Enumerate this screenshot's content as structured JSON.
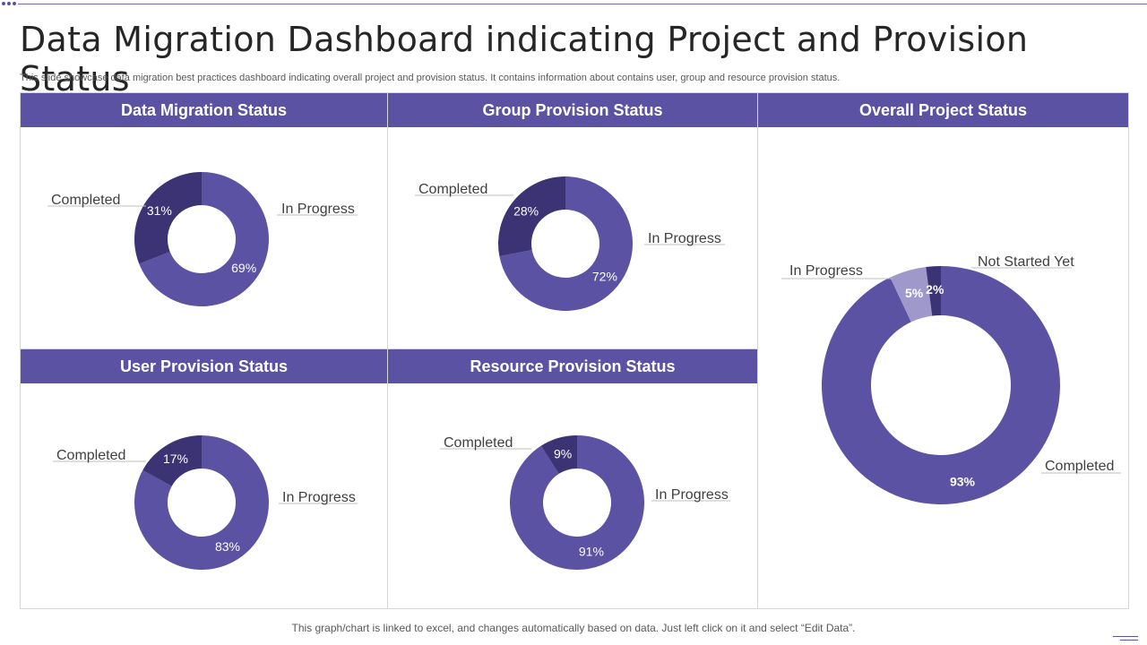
{
  "page": {
    "title": "Data Migration Dashboard indicating Project and Provision Status",
    "subtitle": "This slide showcase data migration best practices dashboard indicating overall project and provision status. It contains information about contains user, group and resource provision status.",
    "footer": "This graph/chart is linked to excel, and changes automatically based on data. Just left click on it and select “Edit Data”."
  },
  "colors": {
    "header": "#5b52a3",
    "in_progress": "#5b52a3",
    "completed": "#3b3373",
    "not_started": "#3b3373",
    "overall_in_progress": "#9e98cb"
  },
  "chart_data": [
    {
      "type": "pie",
      "title": "Data Migration Status",
      "slices": [
        {
          "label": "In Progress",
          "value": 69,
          "display": "69%"
        },
        {
          "label": "Completed",
          "value": 31,
          "display": "31%"
        }
      ]
    },
    {
      "type": "pie",
      "title": "Group Provision Status",
      "slices": [
        {
          "label": "In Progress",
          "value": 72,
          "display": "72%"
        },
        {
          "label": "Completed",
          "value": 28,
          "display": "28%"
        }
      ]
    },
    {
      "type": "pie",
      "title": "Overall Project Status",
      "slices": [
        {
          "label": "Completed",
          "value": 93,
          "display": "93%"
        },
        {
          "label": "In Progress",
          "value": 5,
          "display": "5%"
        },
        {
          "label": "Not Started Yet",
          "value": 2,
          "display": "2%"
        }
      ]
    },
    {
      "type": "pie",
      "title": "User Provision Status",
      "slices": [
        {
          "label": "In Progress",
          "value": 83,
          "display": "83%"
        },
        {
          "label": "Completed",
          "value": 17,
          "display": "17%"
        }
      ]
    },
    {
      "type": "pie",
      "title": "Resource Provision Status",
      "slices": [
        {
          "label": "In Progress",
          "value": 91,
          "display": "91%"
        },
        {
          "label": "Completed",
          "value": 9,
          "display": "9%"
        }
      ]
    }
  ]
}
